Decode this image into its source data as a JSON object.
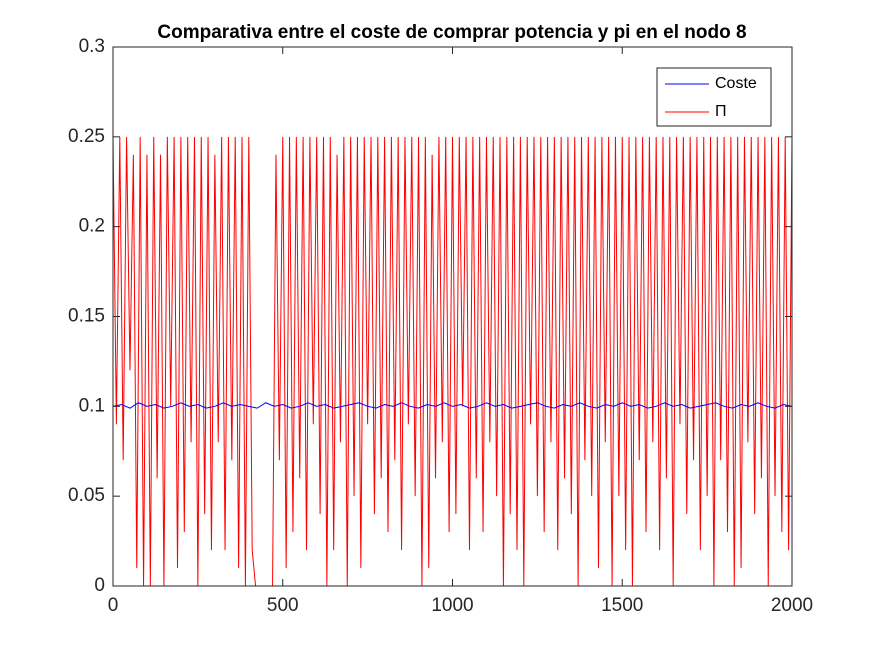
{
  "chart_data": {
    "type": "line",
    "title": "Comparativa entre el coste de comprar potencia y pi en el nodo 8",
    "xlim": [
      0,
      2000
    ],
    "xticks": [
      0,
      500,
      1000,
      1500,
      2000
    ],
    "ylim": [
      0,
      0.3
    ],
    "yticks": [
      0,
      0.05,
      0.1,
      0.15,
      0.2,
      0.25,
      0.3
    ],
    "legend": "northeast",
    "series": [
      {
        "name": "Coste",
        "color": "#0000ff",
        "x": [
          0,
          25,
          50,
          75,
          100,
          125,
          150,
          175,
          200,
          225,
          250,
          275,
          300,
          325,
          350,
          375,
          400,
          425,
          450,
          475,
          500,
          525,
          550,
          575,
          600,
          625,
          650,
          675,
          700,
          725,
          750,
          775,
          800,
          825,
          850,
          875,
          900,
          925,
          950,
          975,
          1000,
          1025,
          1050,
          1075,
          1100,
          1125,
          1150,
          1175,
          1200,
          1225,
          1250,
          1275,
          1300,
          1325,
          1350,
          1375,
          1400,
          1425,
          1450,
          1475,
          1500,
          1525,
          1550,
          1575,
          1600,
          1625,
          1650,
          1675,
          1700,
          1725,
          1750,
          1775,
          1800,
          1825,
          1850,
          1875,
          1900,
          1925,
          1950,
          1975,
          2000
        ],
        "values": [
          0.1,
          0.101,
          0.099,
          0.102,
          0.1,
          0.101,
          0.099,
          0.1,
          0.102,
          0.1,
          0.101,
          0.099,
          0.1,
          0.102,
          0.1,
          0.101,
          0.1,
          0.099,
          0.102,
          0.1,
          0.101,
          0.099,
          0.1,
          0.102,
          0.1,
          0.101,
          0.099,
          0.1,
          0.101,
          0.102,
          0.1,
          0.099,
          0.101,
          0.1,
          0.102,
          0.1,
          0.099,
          0.101,
          0.1,
          0.102,
          0.1,
          0.101,
          0.099,
          0.1,
          0.102,
          0.1,
          0.101,
          0.099,
          0.1,
          0.101,
          0.102,
          0.1,
          0.099,
          0.101,
          0.1,
          0.102,
          0.1,
          0.099,
          0.101,
          0.1,
          0.102,
          0.1,
          0.101,
          0.099,
          0.1,
          0.102,
          0.1,
          0.101,
          0.099,
          0.1,
          0.101,
          0.102,
          0.1,
          0.099,
          0.101,
          0.1,
          0.102,
          0.1,
          0.099,
          0.101,
          0.1
        ]
      },
      {
        "name": "Π",
        "color": "#ff0000",
        "x": [
          0,
          10,
          20,
          30,
          40,
          50,
          60,
          70,
          80,
          90,
          100,
          110,
          120,
          130,
          140,
          150,
          160,
          170,
          180,
          190,
          200,
          210,
          220,
          230,
          240,
          250,
          260,
          270,
          280,
          290,
          300,
          310,
          320,
          330,
          340,
          350,
          360,
          370,
          380,
          390,
          400,
          410,
          420,
          430,
          440,
          450,
          460,
          470,
          480,
          490,
          500,
          510,
          520,
          530,
          540,
          550,
          560,
          570,
          580,
          590,
          600,
          610,
          620,
          630,
          640,
          650,
          660,
          670,
          680,
          690,
          700,
          710,
          720,
          730,
          740,
          750,
          760,
          770,
          780,
          790,
          800,
          810,
          820,
          830,
          840,
          850,
          860,
          870,
          880,
          890,
          900,
          910,
          920,
          930,
          940,
          950,
          960,
          970,
          980,
          990,
          1000,
          1010,
          1020,
          1030,
          1040,
          1050,
          1060,
          1070,
          1080,
          1090,
          1100,
          1110,
          1120,
          1130,
          1140,
          1150,
          1160,
          1170,
          1180,
          1190,
          1200,
          1210,
          1220,
          1230,
          1240,
          1250,
          1260,
          1270,
          1280,
          1290,
          1300,
          1310,
          1320,
          1330,
          1340,
          1350,
          1360,
          1370,
          1380,
          1390,
          1400,
          1410,
          1420,
          1430,
          1440,
          1450,
          1460,
          1470,
          1480,
          1490,
          1500,
          1510,
          1520,
          1530,
          1540,
          1550,
          1560,
          1570,
          1580,
          1590,
          1600,
          1610,
          1620,
          1630,
          1640,
          1650,
          1660,
          1670,
          1680,
          1690,
          1700,
          1710,
          1720,
          1730,
          1740,
          1750,
          1760,
          1770,
          1780,
          1790,
          1800,
          1810,
          1820,
          1830,
          1840,
          1850,
          1860,
          1870,
          1880,
          1890,
          1900,
          1910,
          1920,
          1930,
          1940,
          1950,
          1960,
          1970,
          1980,
          1990,
          2000
        ],
        "values": [
          0.25,
          0.09,
          0.25,
          0.07,
          0.25,
          0.12,
          0.24,
          0.01,
          0.25,
          0,
          0.24,
          0,
          0.25,
          0.06,
          0.24,
          0,
          0.25,
          0.1,
          0.25,
          0.01,
          0.25,
          0.03,
          0.25,
          0.08,
          0.25,
          0,
          0.25,
          0.04,
          0.25,
          0.02,
          0.24,
          0.08,
          0.25,
          0.02,
          0.25,
          0.07,
          0.25,
          0.01,
          0.25,
          0,
          0.25,
          0.02,
          0,
          0,
          0,
          0,
          0,
          0,
          0.24,
          0.07,
          0.25,
          0.01,
          0.25,
          0.03,
          0.25,
          0.06,
          0.25,
          0.02,
          0.25,
          0.09,
          0.25,
          0.04,
          0.25,
          0,
          0.25,
          0.02,
          0.24,
          0.08,
          0.25,
          0,
          0.25,
          0.05,
          0.25,
          0.01,
          0.25,
          0.09,
          0.25,
          0.04,
          0.25,
          0.06,
          0.25,
          0.03,
          0.25,
          0.07,
          0.25,
          0.02,
          0.25,
          0.09,
          0.25,
          0.05,
          0.25,
          0,
          0.25,
          0.01,
          0.24,
          0.06,
          0.25,
          0.08,
          0.25,
          0.03,
          0.25,
          0.04,
          0.25,
          0.1,
          0.25,
          0.02,
          0.25,
          0.06,
          0.25,
          0.03,
          0.25,
          0.08,
          0.25,
          0.05,
          0.25,
          0,
          0.25,
          0.04,
          0.25,
          0.02,
          0.25,
          0,
          0.25,
          0.09,
          0.25,
          0.05,
          0.25,
          0.03,
          0.25,
          0.08,
          0.25,
          0.02,
          0.25,
          0.06,
          0.25,
          0.04,
          0.25,
          0,
          0.25,
          0.07,
          0.25,
          0.05,
          0.25,
          0.01,
          0.25,
          0.08,
          0.25,
          0,
          0.25,
          0.05,
          0.25,
          0.02,
          0.25,
          0,
          0.25,
          0.07,
          0.25,
          0.03,
          0.25,
          0.08,
          0.25,
          0.02,
          0.25,
          0.06,
          0.25,
          0,
          0.25,
          0.09,
          0.25,
          0.04,
          0.25,
          0.07,
          0.25,
          0.02,
          0.25,
          0.05,
          0.25,
          0,
          0.25,
          0.07,
          0.25,
          0.03,
          0.25,
          0,
          0.25,
          0.01,
          0.25,
          0.08,
          0.25,
          0.04,
          0.25,
          0.06,
          0.25,
          0,
          0.25,
          0.05,
          0.25,
          0.03,
          0.25,
          0.02,
          0.25
        ]
      }
    ]
  }
}
